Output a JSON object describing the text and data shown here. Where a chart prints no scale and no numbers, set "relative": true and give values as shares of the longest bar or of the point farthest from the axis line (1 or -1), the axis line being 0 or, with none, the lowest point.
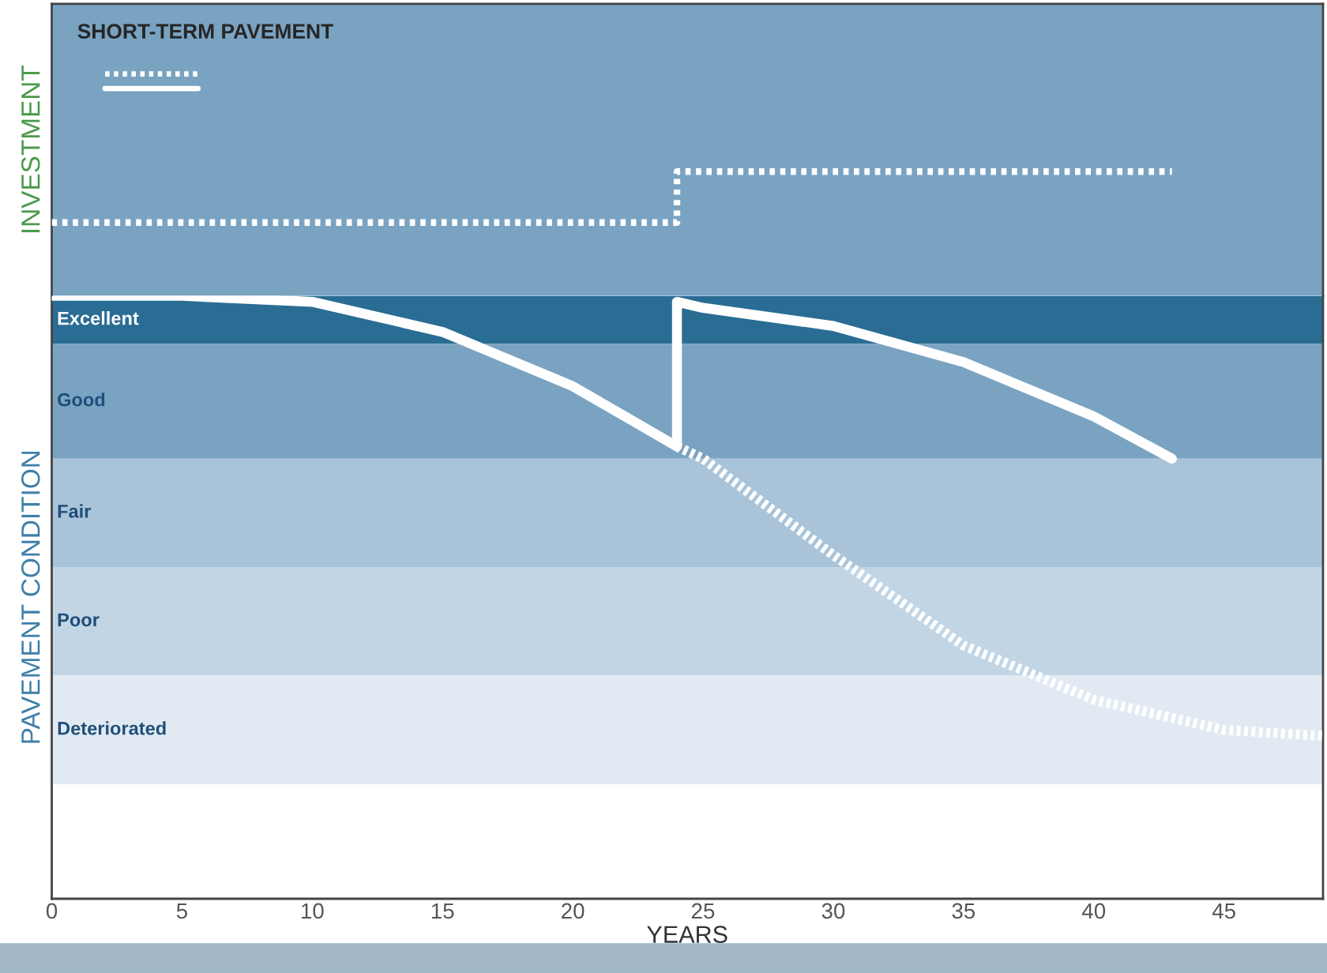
{
  "chart_data": [
    {
      "type": "step",
      "relative": true,
      "title": "SHORT-TERM PAVEMENT",
      "ylabel": "INVESTMENT",
      "xlim": [
        0,
        48.8
      ],
      "tick_labels": false,
      "grid": false,
      "legend": false,
      "series": [
        {
          "color": "#ffffff",
          "line_style": "dotted",
          "x": [
            0,
            24,
            43
          ],
          "values": [
            0.59,
            1,
            1
          ]
        }
      ]
    },
    {
      "type": "line",
      "relative": true,
      "ylabel": "PAVEMENT CONDITION",
      "xlabel": "YEARS",
      "xlim": [
        0,
        48.8
      ],
      "xticks": [
        0,
        5,
        10,
        15,
        20,
        25,
        30,
        35,
        40,
        45
      ],
      "tick_labels": "x",
      "grid": false,
      "legend": false,
      "bands": [
        {
          "axis": "y",
          "from": 0.92,
          "to": 1,
          "label": "Excellent",
          "color": "#2a6d94"
        },
        {
          "axis": "y",
          "from": 0.73,
          "to": 0.92,
          "label": "Good",
          "color": "#7aa3c2"
        },
        {
          "axis": "y",
          "from": 0.55,
          "to": 0.73,
          "label": "Fair",
          "color": "#a9c4d9"
        },
        {
          "axis": "y",
          "from": 0.37,
          "to": 0.55,
          "label": "Poor",
          "color": "#c1d5e5"
        },
        {
          "axis": "y",
          "from": 0.19,
          "to": 0.37,
          "label": "Deteriorated",
          "color": "#e1eaf2"
        }
      ],
      "series": [
        {
          "color": "#ffffff",
          "line_style": "dashed",
          "x": [
            24,
            25,
            30,
            35,
            40,
            45,
            48.8
          ],
          "values": [
            0.75,
            0.73,
            0.57,
            0.42,
            0.33,
            0.28,
            0.27
          ]
        },
        {
          "color": "#ffffff",
          "line_style": "solid",
          "x": [
            0,
            5,
            10,
            15,
            20,
            24,
            24,
            25,
            30,
            35,
            40,
            43
          ],
          "values": [
            1,
            1,
            0.99,
            0.94,
            0.85,
            0.75,
            0.99,
            0.98,
            0.95,
            0.89,
            0.8,
            0.73
          ]
        }
      ]
    }
  ]
}
